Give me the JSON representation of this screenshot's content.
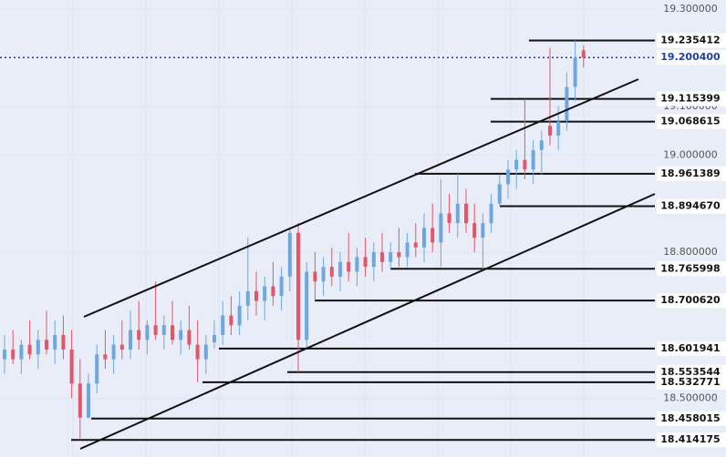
{
  "chart_data": {
    "type": "candlestick",
    "ylim": [
      18.379,
      19.3187
    ],
    "yticks": [
      {
        "value": 19.3,
        "label": "19.300000"
      },
      {
        "value": 19.1,
        "label": "19.100000"
      },
      {
        "value": 19.0,
        "label": "19.000000"
      },
      {
        "value": 18.8,
        "label": "18.800000"
      },
      {
        "value": 18.5,
        "label": "18.500000"
      }
    ],
    "grid": true,
    "up_color": "#6ea6e0",
    "down_color": "#e0576a",
    "current_price": {
      "value": 19.2004,
      "label": "19.200400"
    },
    "levels": [
      19.235412,
      19.115399,
      19.068615,
      18.961389,
      {
        "value": 18.89467,
        "label": "18.894670"
      },
      18.765998,
      {
        "value": 18.70062,
        "label": "18.700620"
      },
      18.601941,
      18.553544,
      18.532771,
      18.458015,
      18.414175
    ],
    "candles": [
      [
        18.58,
        18.63,
        18.55,
        18.6
      ],
      [
        18.6,
        18.64,
        18.57,
        18.58
      ],
      [
        18.58,
        18.62,
        18.55,
        18.61
      ],
      [
        18.61,
        18.66,
        18.58,
        18.59
      ],
      [
        18.59,
        18.64,
        18.56,
        18.62
      ],
      [
        18.62,
        18.68,
        18.59,
        18.6
      ],
      [
        18.6,
        18.66,
        18.57,
        18.63
      ],
      [
        18.63,
        18.67,
        18.58,
        18.6
      ],
      [
        18.6,
        18.64,
        18.5,
        18.53
      ],
      [
        18.53,
        18.58,
        18.414175,
        18.46
      ],
      [
        18.46,
        18.55,
        18.458015,
        18.53
      ],
      [
        18.53,
        18.61,
        18.51,
        18.59
      ],
      [
        18.59,
        18.64,
        18.56,
        18.58
      ],
      [
        18.58,
        18.63,
        18.55,
        18.61
      ],
      [
        18.61,
        18.66,
        18.58,
        18.6
      ],
      [
        18.6,
        18.68,
        18.58,
        18.64
      ],
      [
        18.64,
        18.7,
        18.6,
        18.62
      ],
      [
        18.62,
        18.66,
        18.59,
        18.65
      ],
      [
        18.65,
        18.74,
        18.62,
        18.63
      ],
      [
        18.63,
        18.67,
        18.6,
        18.65
      ],
      [
        18.65,
        18.7,
        18.61,
        18.62
      ],
      [
        18.62,
        18.66,
        18.59,
        18.64
      ],
      [
        18.64,
        18.69,
        18.6,
        18.61
      ],
      [
        18.61,
        18.66,
        18.532771,
        18.58
      ],
      [
        18.58,
        18.63,
        18.55,
        18.61
      ],
      [
        18.615,
        18.66,
        18.601941,
        18.63
      ],
      [
        18.63,
        18.7,
        18.61,
        18.67
      ],
      [
        18.67,
        18.71,
        18.63,
        18.65
      ],
      [
        18.65,
        18.72,
        18.63,
        18.69
      ],
      [
        18.69,
        18.83,
        18.66,
        18.72
      ],
      [
        18.72,
        18.76,
        18.67,
        18.7
      ],
      [
        18.7,
        18.75,
        18.66,
        18.73
      ],
      [
        18.73,
        18.78,
        18.69,
        18.71
      ],
      [
        18.71,
        18.77,
        18.68,
        18.75
      ],
      [
        18.75,
        18.85,
        18.72,
        18.84
      ],
      [
        18.84,
        18.86,
        18.553544,
        18.62
      ],
      [
        18.62,
        18.78,
        18.6,
        18.76
      ],
      [
        18.76,
        18.8,
        18.70062,
        18.74
      ],
      [
        18.74,
        18.79,
        18.71,
        18.77
      ],
      [
        18.77,
        18.81,
        18.73,
        18.75
      ],
      [
        18.75,
        18.8,
        18.72,
        18.78
      ],
      [
        18.78,
        18.84,
        18.74,
        18.76
      ],
      [
        18.76,
        18.81,
        18.73,
        18.79
      ],
      [
        18.79,
        18.83,
        18.75,
        18.77
      ],
      [
        18.77,
        18.82,
        18.74,
        18.8
      ],
      [
        18.8,
        18.84,
        18.76,
        18.78
      ],
      [
        18.78,
        18.82,
        18.765998,
        18.8
      ],
      [
        18.8,
        18.85,
        18.77,
        18.79
      ],
      [
        18.79,
        18.84,
        18.77,
        18.82
      ],
      [
        18.82,
        18.86,
        18.79,
        18.81
      ],
      [
        18.81,
        18.88,
        18.78,
        18.85
      ],
      [
        18.85,
        18.9,
        18.8,
        18.82
      ],
      [
        18.82,
        18.95,
        18.77,
        18.88
      ],
      [
        18.88,
        18.92,
        18.84,
        18.86
      ],
      [
        18.86,
        18.961389,
        18.83,
        18.9
      ],
      [
        18.9,
        18.93,
        18.84,
        18.86
      ],
      [
        18.86,
        18.9,
        18.8,
        18.83
      ],
      [
        18.83,
        18.88,
        18.76,
        18.86
      ],
      [
        18.86,
        18.92,
        18.84,
        18.9
      ],
      [
        18.9,
        18.96,
        18.89467,
        18.94
      ],
      [
        18.94,
        18.99,
        18.91,
        18.97
      ],
      [
        18.97,
        19.01,
        18.93,
        18.99
      ],
      [
        18.99,
        19.115399,
        18.95,
        18.97
      ],
      [
        18.97,
        19.03,
        18.94,
        19.01
      ],
      [
        19.01,
        19.05,
        18.96,
        19.03
      ],
      [
        19.06,
        19.22,
        19.02,
        19.04
      ],
      [
        19.04,
        19.1,
        19.01,
        19.068615
      ],
      [
        19.07,
        19.17,
        19.05,
        19.14
      ],
      [
        19.14,
        19.235412,
        19.11,
        19.2
      ],
      [
        19.215,
        19.225,
        19.18,
        19.2004
      ]
    ]
  }
}
